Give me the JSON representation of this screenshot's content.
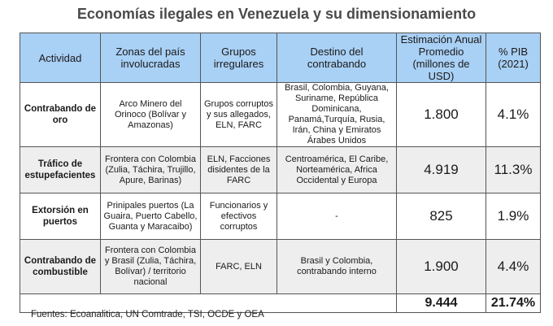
{
  "title": "Economías ilegales en Venezuela y su dimensionamiento",
  "columns": [
    "Actividad",
    "Zonas del país involucradas",
    "Grupos irregulares",
    "Destino del contrabando",
    "Estimación Anual Promedio (millones de USD)",
    "% PIB (2021)"
  ],
  "rows": [
    {
      "activity": "Contrabando de oro",
      "zones": "Arco Minero del Orinoco (Bolívar y Amazonas)",
      "groups": "Grupos corruptos y sus allegados, ELN, FARC",
      "destination": "Brasil, Colombia, Guyana, Suriname, República Dominicana, Panamá,Turquía, Rusia, Irán, China y Emiratos Árabes Unidos",
      "estimate": "1.800",
      "gdp": "4.1%"
    },
    {
      "activity": "Tráfico de estupefacientes",
      "zones": "Frontera con Colombia (Zulia, Táchira, Trujillo, Apure, Barinas)",
      "groups": "ELN, Facciones disidentes de la FARC",
      "destination": "Centroamérica, El Caribe, Norteamérica, Africa Occidental y Europa",
      "estimate": "4.919",
      "gdp": "11.3%"
    },
    {
      "activity": "Extorsión en puertos",
      "zones": "Prinipales puertos (La Guaira, Puerto Cabello, Guanta y Maracaibo)",
      "groups": "Funcionarios y efectivos corruptos",
      "destination": "-",
      "estimate": "825",
      "gdp": "1.9%"
    },
    {
      "activity": "Contrabando de combustible",
      "zones": "Frontera con Colombia y Brasil (Zulia, Táchira, Bolívar) / territorio nacional",
      "groups": "FARC, ELN",
      "destination": "Brasil y Colombia, contrabando interno",
      "estimate": "1.900",
      "gdp": "4.4%"
    }
  ],
  "totals": {
    "estimate": "9.444",
    "gdp": "21.74%"
  },
  "source": "Fuentes: Ecoanalitica, UN Comtrade, TSI, OCDE y OEA",
  "colors": {
    "header_bg": "#a9d0f5",
    "shaded_row": "#eeeeee",
    "title": "#4a4a4a"
  }
}
